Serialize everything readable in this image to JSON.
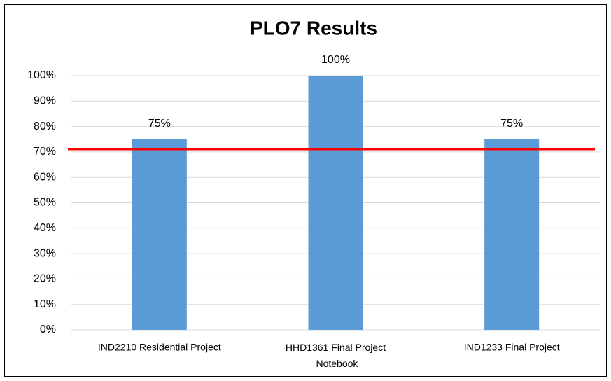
{
  "chart_data": {
    "type": "bar",
    "title": "PLO7 Results",
    "categories": [
      "IND2210 Residential Project",
      "HHD1361 Final Project Notebook",
      "IND1233 Final Project"
    ],
    "values": [
      75,
      100,
      75
    ],
    "value_labels": [
      "75%",
      "100%",
      "75%"
    ],
    "color": "#5b9bd5",
    "ylim": [
      0,
      100
    ],
    "yticks": [
      {
        "value": 0,
        "label": "0%"
      },
      {
        "value": 10,
        "label": "10%"
      },
      {
        "value": 20,
        "label": "20%"
      },
      {
        "value": 30,
        "label": "30%"
      },
      {
        "value": 40,
        "label": "40%"
      },
      {
        "value": 50,
        "label": "50%"
      },
      {
        "value": 60,
        "label": "60%"
      },
      {
        "value": 70,
        "label": "70%"
      },
      {
        "value": 80,
        "label": "80%"
      },
      {
        "value": 90,
        "label": "90%"
      },
      {
        "value": 100,
        "label": "100%"
      }
    ],
    "grid": true,
    "reference_line": {
      "value": 71,
      "color": "#ff0000"
    }
  }
}
